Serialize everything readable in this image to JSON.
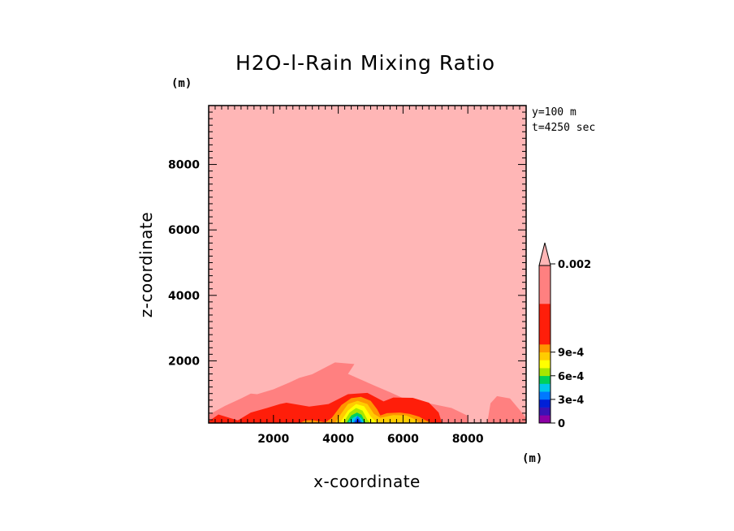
{
  "chart_data": {
    "type": "contour",
    "title": "H2O-l-Rain Mixing Ratio",
    "xlabel": "x-coordinate",
    "ylabel": "z-coordinate",
    "x_unit": "(m)",
    "y_unit": "(m)",
    "xlim": [
      0,
      9800
    ],
    "ylim": [
      100,
      9800
    ],
    "x_ticks": [
      2000,
      4000,
      6000,
      8000
    ],
    "y_ticks": [
      2000,
      4000,
      6000,
      8000
    ],
    "x_tick_labels": [
      "2000",
      "4000",
      "6000",
      "8000"
    ],
    "y_tick_labels": [
      "2000",
      "4000",
      "6000",
      "8000"
    ],
    "annotation_y": "y=100 m",
    "annotation_t": "t=4250 sec",
    "colorbar": {
      "levels": [
        0,
        0.0001,
        0.0002,
        0.0003,
        0.0004,
        0.0005,
        0.0006,
        0.0007,
        0.0008,
        0.0009,
        0.001,
        0.0015,
        0.002
      ],
      "colors": [
        "#8c00a5",
        "#3a12b5",
        "#0020d8",
        "#0078ff",
        "#00c8ea",
        "#00d05a",
        "#a8e600",
        "#ffff00",
        "#ffcc00",
        "#ff9500",
        "#ff1e0a",
        "#ff8080",
        "#ffb6b6"
      ],
      "tick_labels": [
        "0",
        "3e-4",
        "6e-4",
        "9e-4",
        "0.002"
      ],
      "tick_values": [
        0,
        0.0003,
        0.0006,
        0.0009,
        0.002
      ],
      "extend": "max"
    },
    "contour_regions": [
      {
        "level": "background",
        "color": "#ffb6b6",
        "points": [
          [
            0,
            100
          ],
          [
            9800,
            100
          ],
          [
            9800,
            9800
          ],
          [
            0,
            9800
          ]
        ]
      },
      {
        "level": "upper-mid",
        "color": "#ff8080",
        "points": [
          [
            0,
            350
          ],
          [
            500,
            620
          ],
          [
            1000,
            850
          ],
          [
            1300,
            1000
          ],
          [
            1500,
            980
          ],
          [
            2000,
            1130
          ],
          [
            2500,
            1340
          ],
          [
            2800,
            1480
          ],
          [
            3200,
            1590
          ],
          [
            3900,
            1950
          ],
          [
            4500,
            1900
          ],
          [
            4300,
            1600
          ],
          [
            5100,
            1250
          ],
          [
            5600,
            1040
          ],
          [
            6000,
            860
          ],
          [
            6800,
            700
          ],
          [
            7500,
            560
          ],
          [
            8000,
            320
          ],
          [
            8000,
            100
          ],
          [
            0,
            100
          ]
        ]
      },
      {
        "level": "upper-mid",
        "color": "#ff8080",
        "points": [
          [
            8600,
            100
          ],
          [
            8700,
            700
          ],
          [
            8900,
            920
          ],
          [
            9300,
            850
          ],
          [
            9600,
            500
          ],
          [
            9800,
            250
          ],
          [
            9800,
            100
          ]
        ]
      },
      {
        "level": "high-mid",
        "color": "#ff1e0a",
        "points": [
          [
            0,
            150
          ],
          [
            300,
            360
          ],
          [
            900,
            180
          ],
          [
            1300,
            420
          ],
          [
            1800,
            560
          ],
          [
            2200,
            680
          ],
          [
            2400,
            720
          ],
          [
            3100,
            600
          ],
          [
            3700,
            680
          ],
          [
            4300,
            980
          ],
          [
            4900,
            1020
          ],
          [
            5400,
            760
          ],
          [
            5700,
            880
          ],
          [
            6300,
            870
          ],
          [
            6800,
            720
          ],
          [
            7100,
            420
          ],
          [
            7200,
            100
          ],
          [
            0,
            100
          ]
        ]
      },
      {
        "level": "9e-4",
        "color": "#ff9500",
        "points": [
          [
            2800,
            100
          ],
          [
            3000,
            180
          ],
          [
            3200,
            190
          ],
          [
            3600,
            120
          ],
          [
            3800,
            260
          ],
          [
            4100,
            650
          ],
          [
            4400,
            860
          ],
          [
            4700,
            900
          ],
          [
            5000,
            780
          ],
          [
            5200,
            520
          ],
          [
            5300,
            330
          ],
          [
            5500,
            400
          ],
          [
            5900,
            420
          ],
          [
            6200,
            380
          ],
          [
            6500,
            290
          ],
          [
            6700,
            180
          ],
          [
            6900,
            100
          ]
        ]
      },
      {
        "level": "8e-4",
        "color": "#ffcc00",
        "points": [
          [
            3900,
            100
          ],
          [
            4100,
            400
          ],
          [
            4300,
            680
          ],
          [
            4600,
            780
          ],
          [
            4900,
            680
          ],
          [
            5100,
            380
          ],
          [
            5300,
            260
          ],
          [
            5700,
            340
          ],
          [
            6100,
            330
          ],
          [
            6400,
            200
          ],
          [
            6500,
            100
          ]
        ]
      },
      {
        "level": "7e-4",
        "color": "#ffff00",
        "points": [
          [
            4050,
            100
          ],
          [
            4300,
            480
          ],
          [
            4550,
            680
          ],
          [
            4800,
            610
          ],
          [
            5000,
            300
          ],
          [
            5200,
            100
          ]
        ]
      },
      {
        "level": "6e-4",
        "color": "#a8e600",
        "points": [
          [
            4150,
            100
          ],
          [
            4350,
            420
          ],
          [
            4550,
            560
          ],
          [
            4750,
            480
          ],
          [
            4900,
            200
          ],
          [
            5000,
            100
          ]
        ]
      },
      {
        "level": "5e-4",
        "color": "#00d05a",
        "points": [
          [
            4250,
            100
          ],
          [
            4400,
            330
          ],
          [
            4580,
            420
          ],
          [
            4720,
            350
          ],
          [
            4850,
            100
          ]
        ]
      },
      {
        "level": "4e-4",
        "color": "#00c8ea",
        "points": [
          [
            4300,
            100
          ],
          [
            4450,
            260
          ],
          [
            4580,
            320
          ],
          [
            4700,
            260
          ],
          [
            4800,
            100
          ]
        ]
      },
      {
        "level": "3e-4",
        "color": "#0078ff",
        "points": [
          [
            4450,
            100
          ],
          [
            4600,
            320
          ],
          [
            4750,
            100
          ]
        ]
      },
      {
        "level": "2e-4",
        "color": "#0020d8",
        "points": [
          [
            4500,
            100
          ],
          [
            4600,
            240
          ],
          [
            4700,
            100
          ]
        ]
      }
    ]
  }
}
